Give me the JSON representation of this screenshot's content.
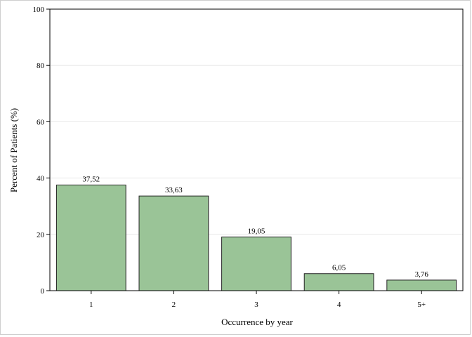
{
  "chart_data": {
    "type": "bar",
    "categories": [
      "1",
      "2",
      "3",
      "4",
      "5+"
    ],
    "values": [
      37.52,
      33.63,
      19.05,
      6.05,
      3.76
    ],
    "value_labels": [
      "37,52",
      "33,63",
      "19,05",
      "6,05",
      "3,76"
    ],
    "title": "",
    "xlabel": "Occurrence by year",
    "ylabel": "Percent of Patients (%)",
    "ylim": [
      0,
      100
    ],
    "yticks": [
      0,
      20,
      40,
      60,
      80,
      100
    ],
    "grid": true,
    "bar_color": "#9ac497",
    "bar_edge_color": "#222222",
    "grid_color": "#e8e8e8"
  }
}
